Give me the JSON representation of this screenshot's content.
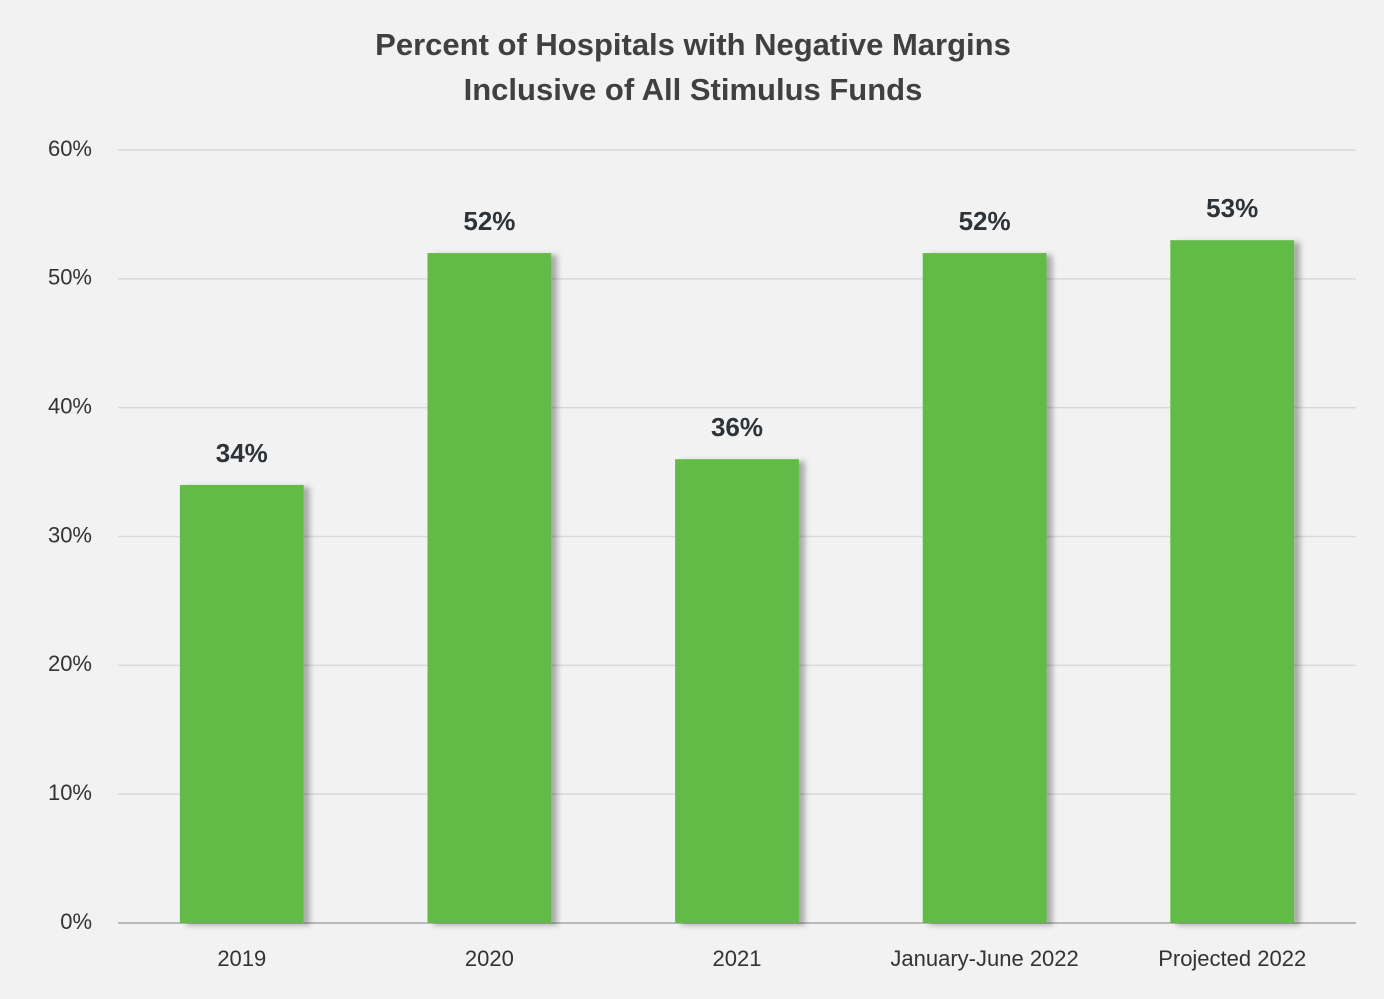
{
  "chart_data": {
    "type": "bar",
    "title": [
      "Percent of Hospitals with Negative Margins",
      "Inclusive of All Stimulus Funds"
    ],
    "categories": [
      "2019",
      "2020",
      "2021",
      "January-June 2022",
      "Projected 2022"
    ],
    "values": [
      34,
      52,
      36,
      52,
      53
    ],
    "value_labels": [
      "34%",
      "52%",
      "36%",
      "52%",
      "53%"
    ],
    "color": "#62bb47",
    "ylim": [
      0,
      60
    ],
    "yticks": [
      {
        "value": 0,
        "label": "0%"
      },
      {
        "value": 10,
        "label": "10%"
      },
      {
        "value": 20,
        "label": "20%"
      },
      {
        "value": 30,
        "label": "30%"
      },
      {
        "value": 40,
        "label": "40%"
      },
      {
        "value": 50,
        "label": "50%"
      },
      {
        "value": 60,
        "label": "60%"
      }
    ],
    "grid": true
  }
}
